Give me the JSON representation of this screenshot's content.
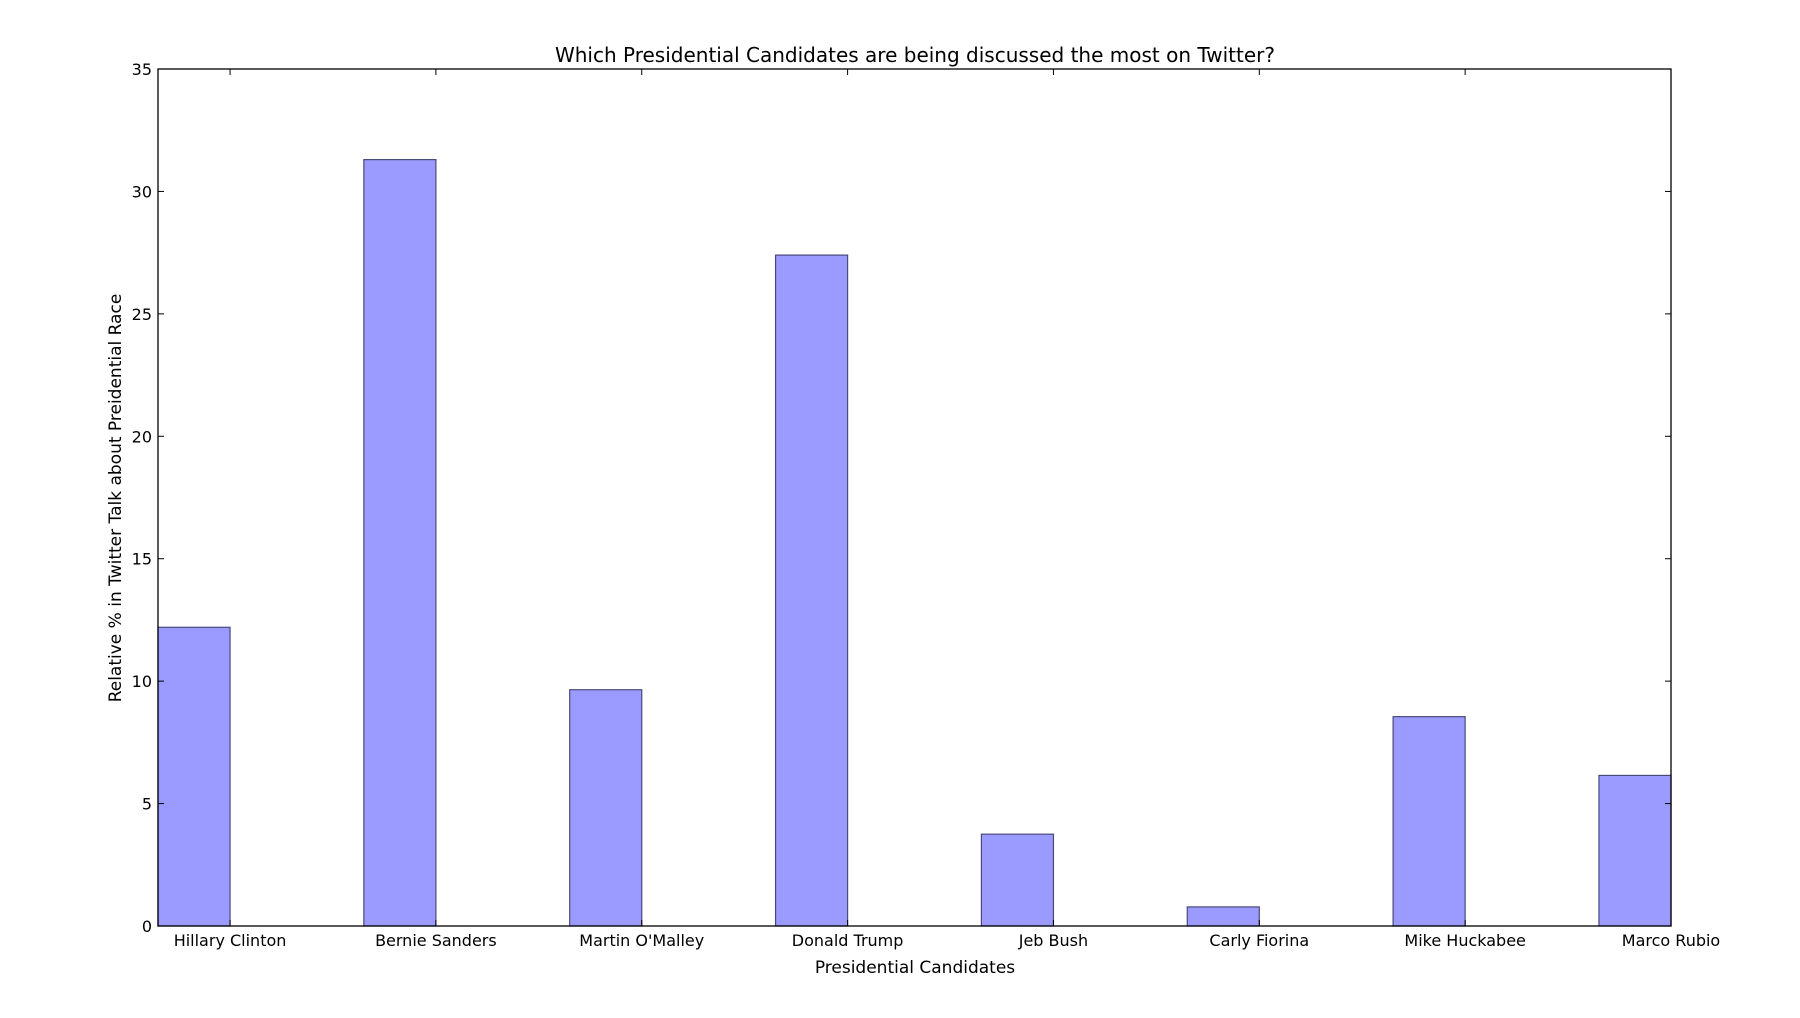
{
  "chart_data": {
    "type": "bar",
    "title": "Which Presidential Candidates are being discussed the most on Twitter?",
    "xlabel": "Presidential Candidates",
    "ylabel": "Relative % in Twitter Talk about Preidential Race",
    "categories": [
      "Hillary Clinton",
      "Bernie Sanders",
      "Martin O'Malley",
      "Donald Trump",
      "Jeb Bush",
      "Carly Fiorina",
      "Mike Huckabee",
      "Marco Rubio"
    ],
    "values": [
      12.2,
      31.3,
      9.65,
      27.4,
      3.75,
      0.78,
      8.55,
      6.15
    ],
    "ylim": [
      0,
      35
    ],
    "yticks": [
      0,
      5,
      10,
      15,
      20,
      25,
      30,
      35
    ],
    "grid": false,
    "bar_color": "#9b9bff",
    "bar_edge_color": "#4a4a7a"
  }
}
